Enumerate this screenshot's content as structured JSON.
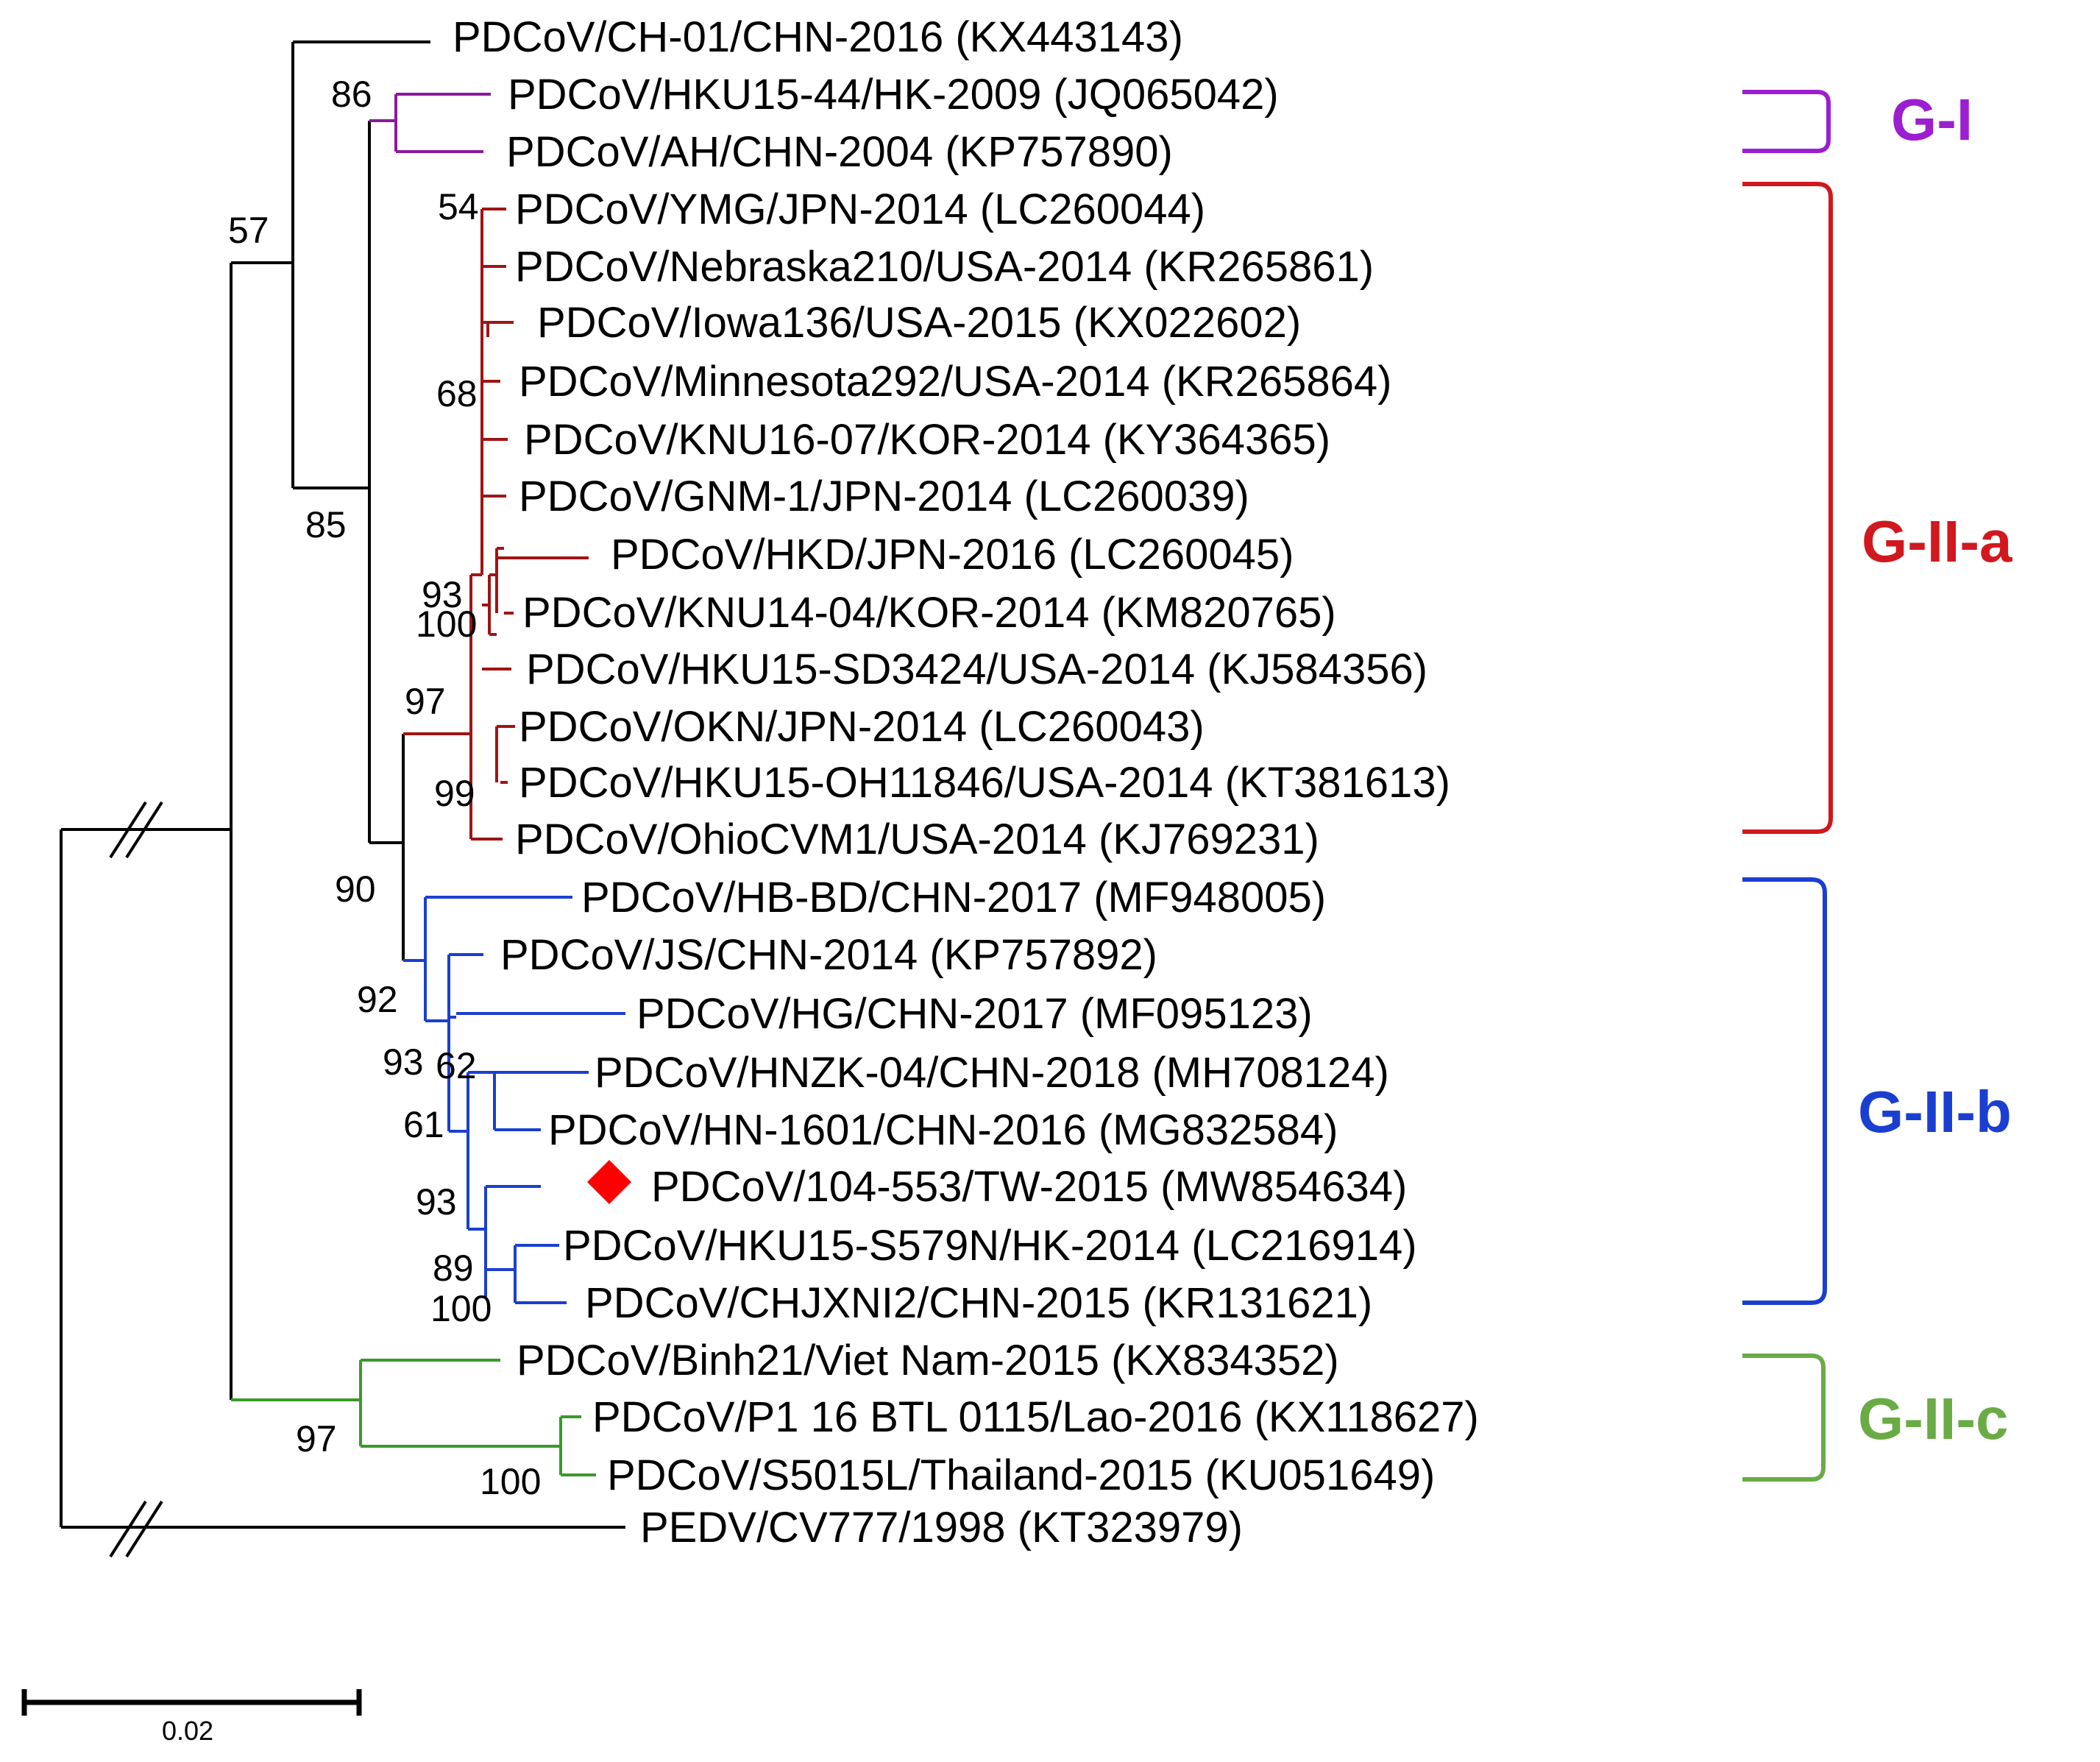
{
  "taxa": [
    "PDCoV/CH-01/CHN-2016 (KX443143)",
    "PDCoV/HKU15-44/HK-2009 (JQ065042)",
    "PDCoV/AH/CHN-2004 (KP757890)",
    "PDCoV/YMG/JPN-2014 (LC260044)",
    "PDCoV/Nebraska210/USA-2014 (KR265861)",
    "PDCoV/Iowa136/USA-2015 (KX022602)",
    "PDCoV/Minnesota292/USA-2014 (KR265864)",
    "PDCoV/KNU16-07/KOR-2014 (KY364365)",
    "PDCoV/GNM-1/JPN-2014 (LC260039)",
    "PDCoV/HKD/JPN-2016 (LC260045)",
    "PDCoV/KNU14-04/KOR-2014 (KM820765)",
    "PDCoV/HKU15-SD3424/USA-2014 (KJ584356)",
    "PDCoV/OKN/JPN-2014 (LC260043)",
    "PDCoV/HKU15-OH11846/USA-2014 (KT381613)",
    "PDCoV/OhioCVM1/USA-2014 (KJ769231)",
    "PDCoV/HB-BD/CHN-2017 (MF948005)",
    "PDCoV/JS/CHN-2014 (KP757892)",
    "PDCoV/HG/CHN-2017 (MF095123)",
    "PDCoV/HNZK-04/CHN-2018 (MH708124)",
    "PDCoV/HN-1601/CHN-2016 (MG832584)",
    "PDCoV/104-553/TW-2015 (MW854634)",
    "PDCoV/HKU15-S579N/HK-2014 (LC216914)",
    "PDCoV/CHJXNI2/CHN-2015 (KR131621)",
    "PDCoV/Binh21/Viet Nam-2015 (KX834352)",
    "PDCoV/P1 16 BTL 0115/Lao-2016 (KX118627)",
    "PDCoV/S5015L/Thailand-2015 (KU051649)",
    "PEDV/CV777/1998 (KT323979)"
  ],
  "bootstrap": [
    "86",
    "57",
    "54",
    "68",
    "85",
    "93",
    "100",
    "97",
    "99",
    "90",
    "92",
    "93",
    "62",
    "61",
    "93",
    "89",
    "100",
    "97",
    "100"
  ],
  "groups": [
    {
      "label": "G-I",
      "color": "#9b1fd0"
    },
    {
      "label": "G-II-a",
      "color": "#d0181e"
    },
    {
      "label": "G-II-b",
      "color": "#1a3fd0"
    },
    {
      "label": "G-II-c",
      "color": "#6aab46"
    }
  ],
  "branch_colors": {
    "black": "#000000",
    "purple": "#8b1a9b",
    "darkred": "#a01414",
    "navy": "#1a1a8c",
    "green": "#3a9a2a"
  },
  "highlight": {
    "taxon": "PDCoV/104-553/TW-2015 (MW854634)",
    "marker": "diamond",
    "color": "#ff0000"
  },
  "scale_bar": {
    "value": "0.02"
  }
}
